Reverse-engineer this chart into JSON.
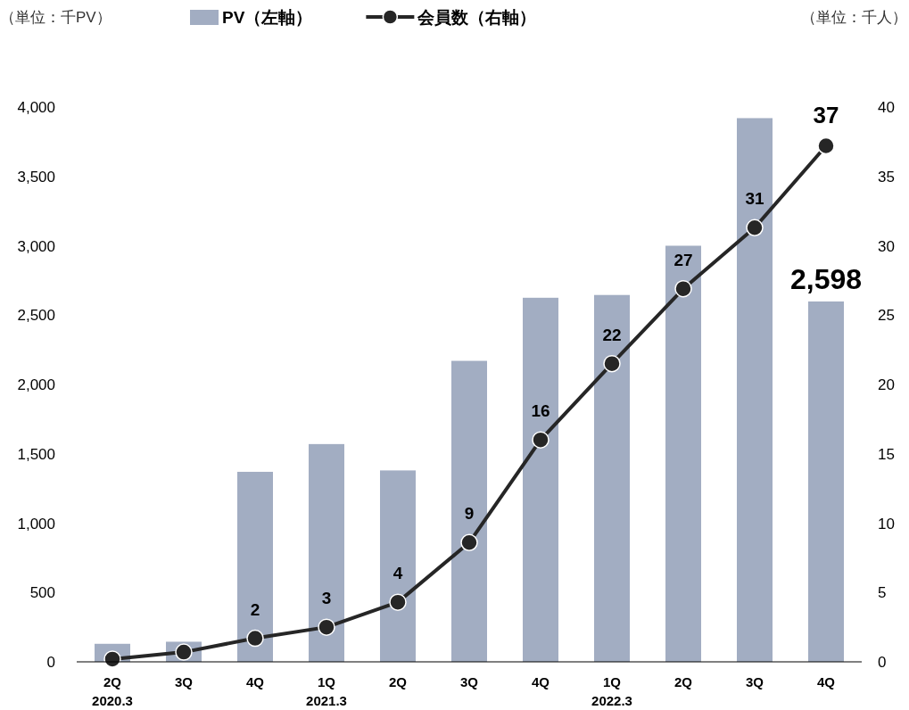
{
  "chart_data": {
    "type": "bar",
    "ylabel": "（単位：千PV）",
    "y2label": "（単位：千人）",
    "categories": [
      "2Q\n2020.3",
      "3Q",
      "4Q",
      "1Q\n2021.3",
      "2Q",
      "3Q",
      "4Q",
      "1Q\n2022.3",
      "2Q",
      "3Q",
      "4Q"
    ],
    "series": [
      {
        "name": "PV（左軸）",
        "color": "#a2adc2",
        "values": [
          130,
          145,
          1370,
          1570,
          1380,
          2170,
          2625,
          2645,
          3000,
          3920,
          2598
        ],
        "value_labels": [
          null,
          null,
          null,
          null,
          null,
          null,
          null,
          null,
          null,
          null,
          "2,598"
        ]
      },
      {
        "name": "会員数（右軸）",
        "type": "line",
        "axis": "y2",
        "color": "#262626",
        "values": [
          0.2,
          0.7,
          1.7,
          2.5,
          4.3,
          8.6,
          16,
          21.5,
          26.9,
          31.3,
          37.2
        ],
        "value_labels": [
          null,
          null,
          "2",
          "3",
          "4",
          "9",
          "16",
          "22",
          "27",
          "31",
          "37"
        ]
      }
    ],
    "marker": "circle",
    "line_style": "solid",
    "legend": "top",
    "grid": false,
    "ylim": [
      0,
      4000
    ],
    "yticks": [
      0,
      500,
      {
        "value": 1000,
        "label": "1,000"
      },
      {
        "value": 1500,
        "label": "1,500"
      },
      {
        "value": 2000,
        "label": "2,000"
      },
      {
        "value": 2500,
        "label": "2,500"
      },
      {
        "value": 3000,
        "label": "3,000"
      },
      {
        "value": 3500,
        "label": "3,500"
      },
      {
        "value": 4000,
        "label": "4,000"
      }
    ],
    "y2lim": [
      0,
      40
    ],
    "y2ticks": [
      0,
      5,
      10,
      15,
      20,
      25,
      30,
      35,
      40
    ]
  }
}
